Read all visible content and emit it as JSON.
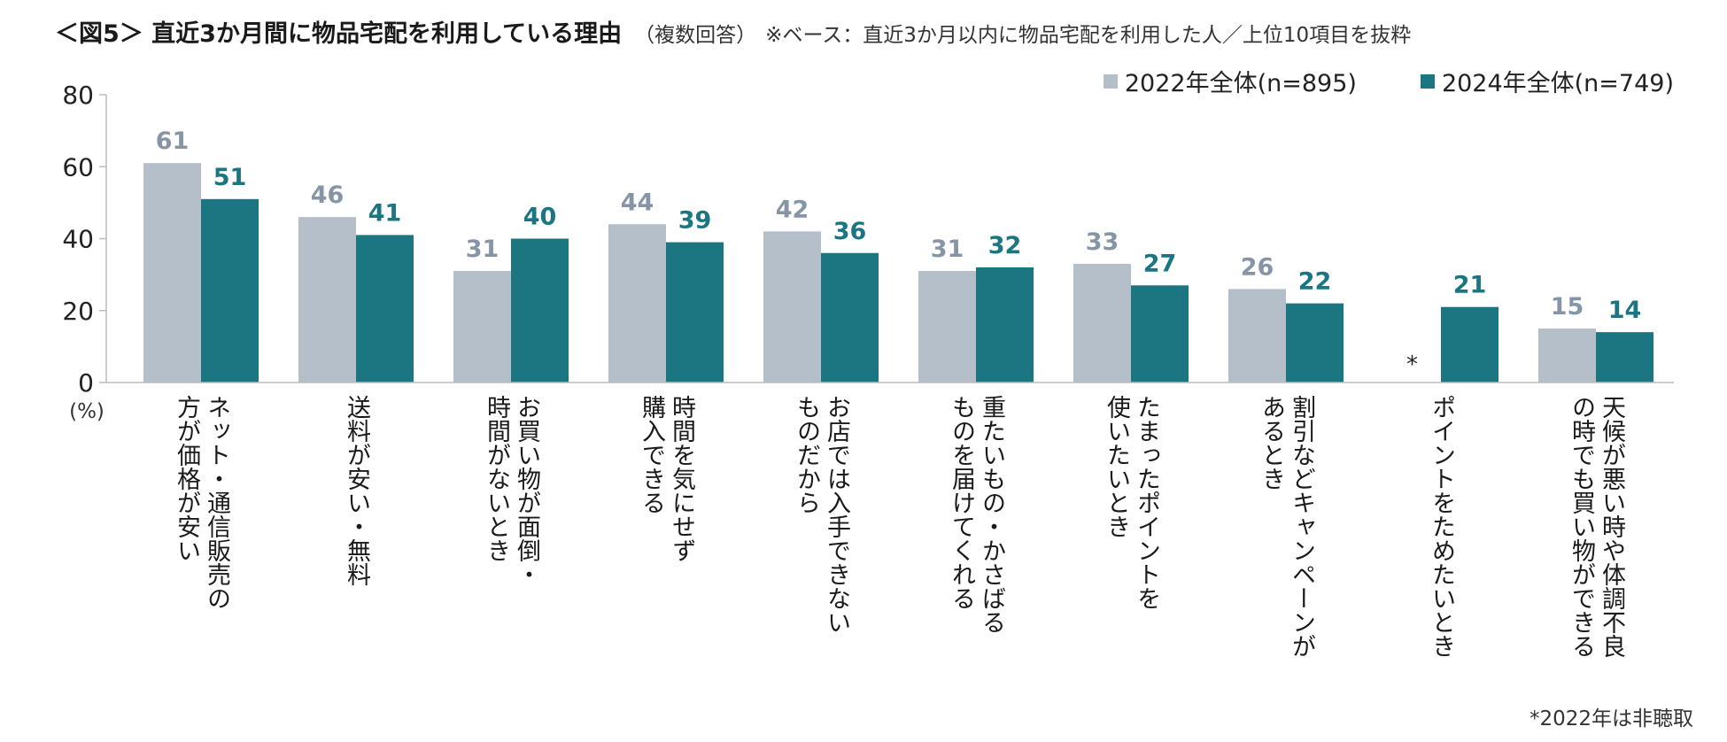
{
  "title": {
    "main": "＜図5＞ 直近3か月間に物品宅配を利用している理由",
    "sub": "（複数回答）",
    "base": "※ベース：直近3か月以内に物品宅配を利用した人／上位10項目を抜粋"
  },
  "footnote": "*2022年は非聴取",
  "colors": {
    "s2022": "#b4bfca",
    "s2024": "#1b7682",
    "label2022": "#8695a6",
    "label2024": "#1b7682",
    "axis": "#bcbcbc"
  },
  "chart_data": {
    "type": "bar",
    "title": "＜図5＞ 直近3か月間に物品宅配を利用している理由",
    "ylabel": "(%)",
    "xlabel": "",
    "ylim": [
      0,
      80
    ],
    "yticks": [
      0,
      20,
      40,
      60,
      80
    ],
    "grid": false,
    "legend": "top-right",
    "categories": [
      "ネット・通信販売の\n方が価格が安い",
      "送料が安い・無料",
      "お買い物が面倒・\n時間がないとき",
      "時間を気にせず\n購入できる",
      "お店では入手できない\nものだから",
      "重たいもの・かさばる\nものを届けてくれる",
      "たまったポイントを\n使いたいとき",
      "割引などキャンペーンが\nあるとき",
      "ポイントをためたいとき",
      "天候が悪い時や体調不良\nの時でも買い物ができる"
    ],
    "series": [
      {
        "name": "2022年全体(n=895)",
        "values": [
          61,
          46,
          31,
          44,
          42,
          31,
          33,
          26,
          null,
          15
        ]
      },
      {
        "name": "2024年全体(n=749)",
        "values": [
          51,
          41,
          40,
          39,
          36,
          32,
          27,
          22,
          21,
          14
        ]
      }
    ],
    "annotations": [
      {
        "category_index": 8,
        "series": 0,
        "text": "*"
      }
    ]
  }
}
